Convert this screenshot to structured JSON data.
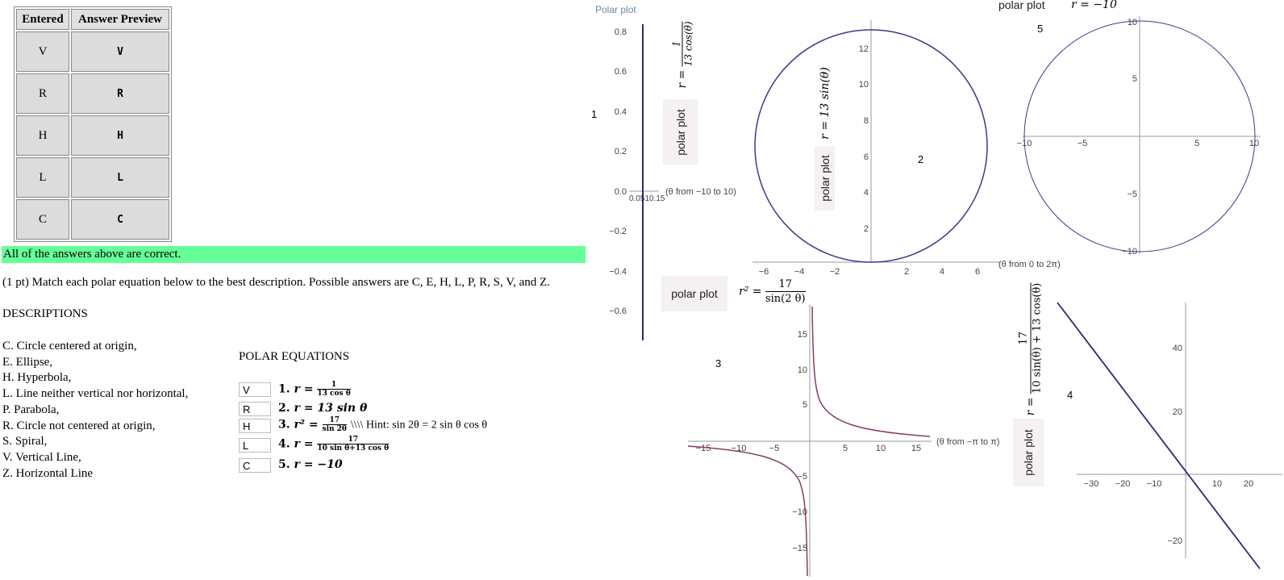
{
  "table": {
    "headers": [
      "Entered",
      "Answer Preview"
    ],
    "rows": [
      {
        "entered": "V",
        "preview": "V"
      },
      {
        "entered": "R",
        "preview": "R"
      },
      {
        "entered": "H",
        "preview": "H"
      },
      {
        "entered": "L",
        "preview": "L"
      },
      {
        "entered": "C",
        "preview": "C"
      }
    ]
  },
  "status": "All of the answers above are correct.",
  "prompt": "(1 pt) Match each polar equation below to the best description. Possible answers are C, E, H, L, P, R, S, V, and Z.",
  "descriptions_title": "DESCRIPTIONS",
  "descriptions": [
    "C. Circle centered at origin,",
    "E. Ellipse,",
    "H. Hyperbola,",
    "L. Line neither vertical nor horizontal,",
    "P. Parabola,",
    "R. Circle not centered at origin,",
    "S. Spiral,",
    "V. Vertical Line,",
    "Z. Horizontal Line"
  ],
  "equations_title": "POLAR EQUATIONS",
  "equations": [
    {
      "answer": "V",
      "num": "1.",
      "lhs": "r =",
      "frac_num": "1",
      "frac_den": "13 cos θ",
      "tail": ""
    },
    {
      "answer": "R",
      "num": "2.",
      "lhs": "r = 13 sin θ",
      "frac_num": "",
      "frac_den": "",
      "tail": ""
    },
    {
      "answer": "H",
      "num": "3.",
      "lhs": "r² =",
      "frac_num": "17",
      "frac_den": "sin 2θ",
      "tail": " \\\\\\\\ Hint: sin 2θ = 2 sin θ cos θ"
    },
    {
      "answer": "L",
      "num": "4.",
      "lhs": "r =",
      "frac_num": "17",
      "frac_den": "10 sin θ+13 cos θ",
      "tail": ""
    },
    {
      "answer": "C",
      "num": "5.",
      "lhs": "r = −10",
      "frac_num": "",
      "frac_den": "",
      "tail": ""
    }
  ],
  "plots": {
    "header": "Polar plot",
    "button_label": "polar plot",
    "p1": {
      "number": "1",
      "eq_num": "1",
      "eq_den": "13 cos(θ)",
      "eq_lhs": "r =",
      "range": "(θ from −10 to 10)",
      "yticks": [
        "0.8",
        "0.6",
        "0.4",
        "0.2",
        "0.0",
        "−0.2",
        "−0.4",
        "−0.6"
      ],
      "xticks": "0.0510.15"
    },
    "p2": {
      "number": "2",
      "eq": "r = 13 sin(θ)",
      "range": "(θ from 0 to 2π)",
      "yticks": [
        "12",
        "10",
        "8",
        "6",
        "4",
        "2"
      ],
      "xticks": [
        "−6",
        "−4",
        "−2",
        "2",
        "4",
        "6"
      ]
    },
    "p3": {
      "number": "3",
      "eq_lhs": "r² =",
      "eq_num": "17",
      "eq_den": "sin(2 θ)",
      "range": "(θ from −π to π)",
      "yticks": [
        "15",
        "10",
        "5",
        "−5",
        "−10",
        "−15"
      ],
      "xticks": [
        "−15",
        "−10",
        "−5",
        "5",
        "10",
        "15"
      ]
    },
    "p4": {
      "number": "4",
      "eq_lhs": "r =",
      "eq_num": "17",
      "eq_den": "10 sin(θ) + 13 cos(θ)",
      "yticks": [
        "40",
        "20",
        "−20"
      ],
      "xticks": [
        "−30",
        "−20",
        "−10",
        "10",
        "20"
      ]
    },
    "p5": {
      "number": "5",
      "eq": "r = −10",
      "yticks": [
        "10",
        "5",
        "−5",
        "−10"
      ],
      "xticks": [
        "−10",
        "−5",
        "5",
        "10"
      ]
    }
  },
  "colors": {
    "status_bg": "#66ff99",
    "curve_blue": "#3a3a8a",
    "curve_purple": "#8a3a6a"
  }
}
